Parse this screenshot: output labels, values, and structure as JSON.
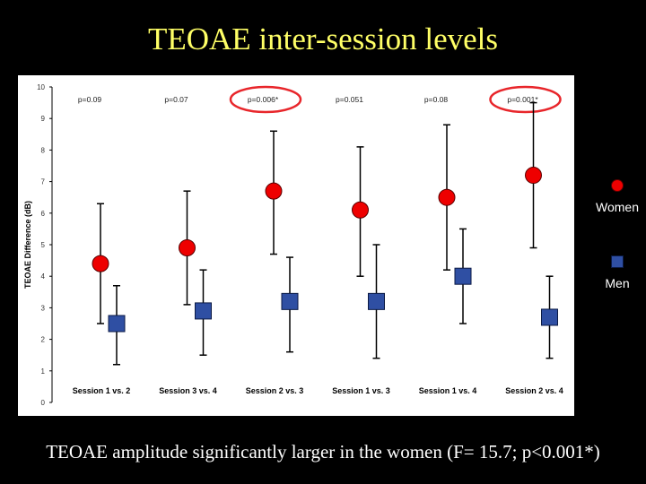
{
  "slide": {
    "title": "TEOAE inter-session levels",
    "caption": "TEOAE amplitude significantly larger in the women (F= 15.7; p<0.001*)"
  },
  "chart_data": {
    "type": "scatter",
    "ylabel": "TEOAE Difference (dB)",
    "ylim": [
      0,
      10
    ],
    "yticks": [
      0,
      1,
      2,
      3,
      4,
      5,
      6,
      7,
      8,
      9,
      10
    ],
    "categories": [
      "Session 1 vs. 2",
      "Session 3 vs. 4",
      "Session 2 vs. 3",
      "Session 1 vs. 3",
      "Session 1 vs. 4",
      "Session 2 vs. 4"
    ],
    "p_values": [
      "p=0.09",
      "p=0.07",
      "p=0.006*",
      "p=0.051",
      "p=0.08",
      "p=0.001*"
    ],
    "highlighted": [
      false,
      false,
      true,
      false,
      false,
      true
    ],
    "series": [
      {
        "name": "Women",
        "marker": "circle",
        "color": "#ee0000",
        "values": [
          4.4,
          4.9,
          6.7,
          6.1,
          6.5,
          7.2
        ],
        "error_low": [
          2.5,
          3.1,
          4.7,
          4.0,
          4.2,
          4.9
        ],
        "error_high": [
          6.3,
          6.7,
          8.6,
          8.1,
          8.8,
          9.5
        ]
      },
      {
        "name": "Men",
        "marker": "square",
        "color": "#2f4fa3",
        "values": [
          2.5,
          2.9,
          3.2,
          3.2,
          4.0,
          2.7
        ],
        "error_low": [
          1.2,
          1.5,
          1.6,
          1.4,
          2.5,
          1.4
        ],
        "error_high": [
          3.7,
          4.2,
          4.6,
          5.0,
          5.5,
          4.0
        ]
      }
    ],
    "legend_position": "right",
    "grid": false,
    "highlight_color": "#e8262b"
  }
}
